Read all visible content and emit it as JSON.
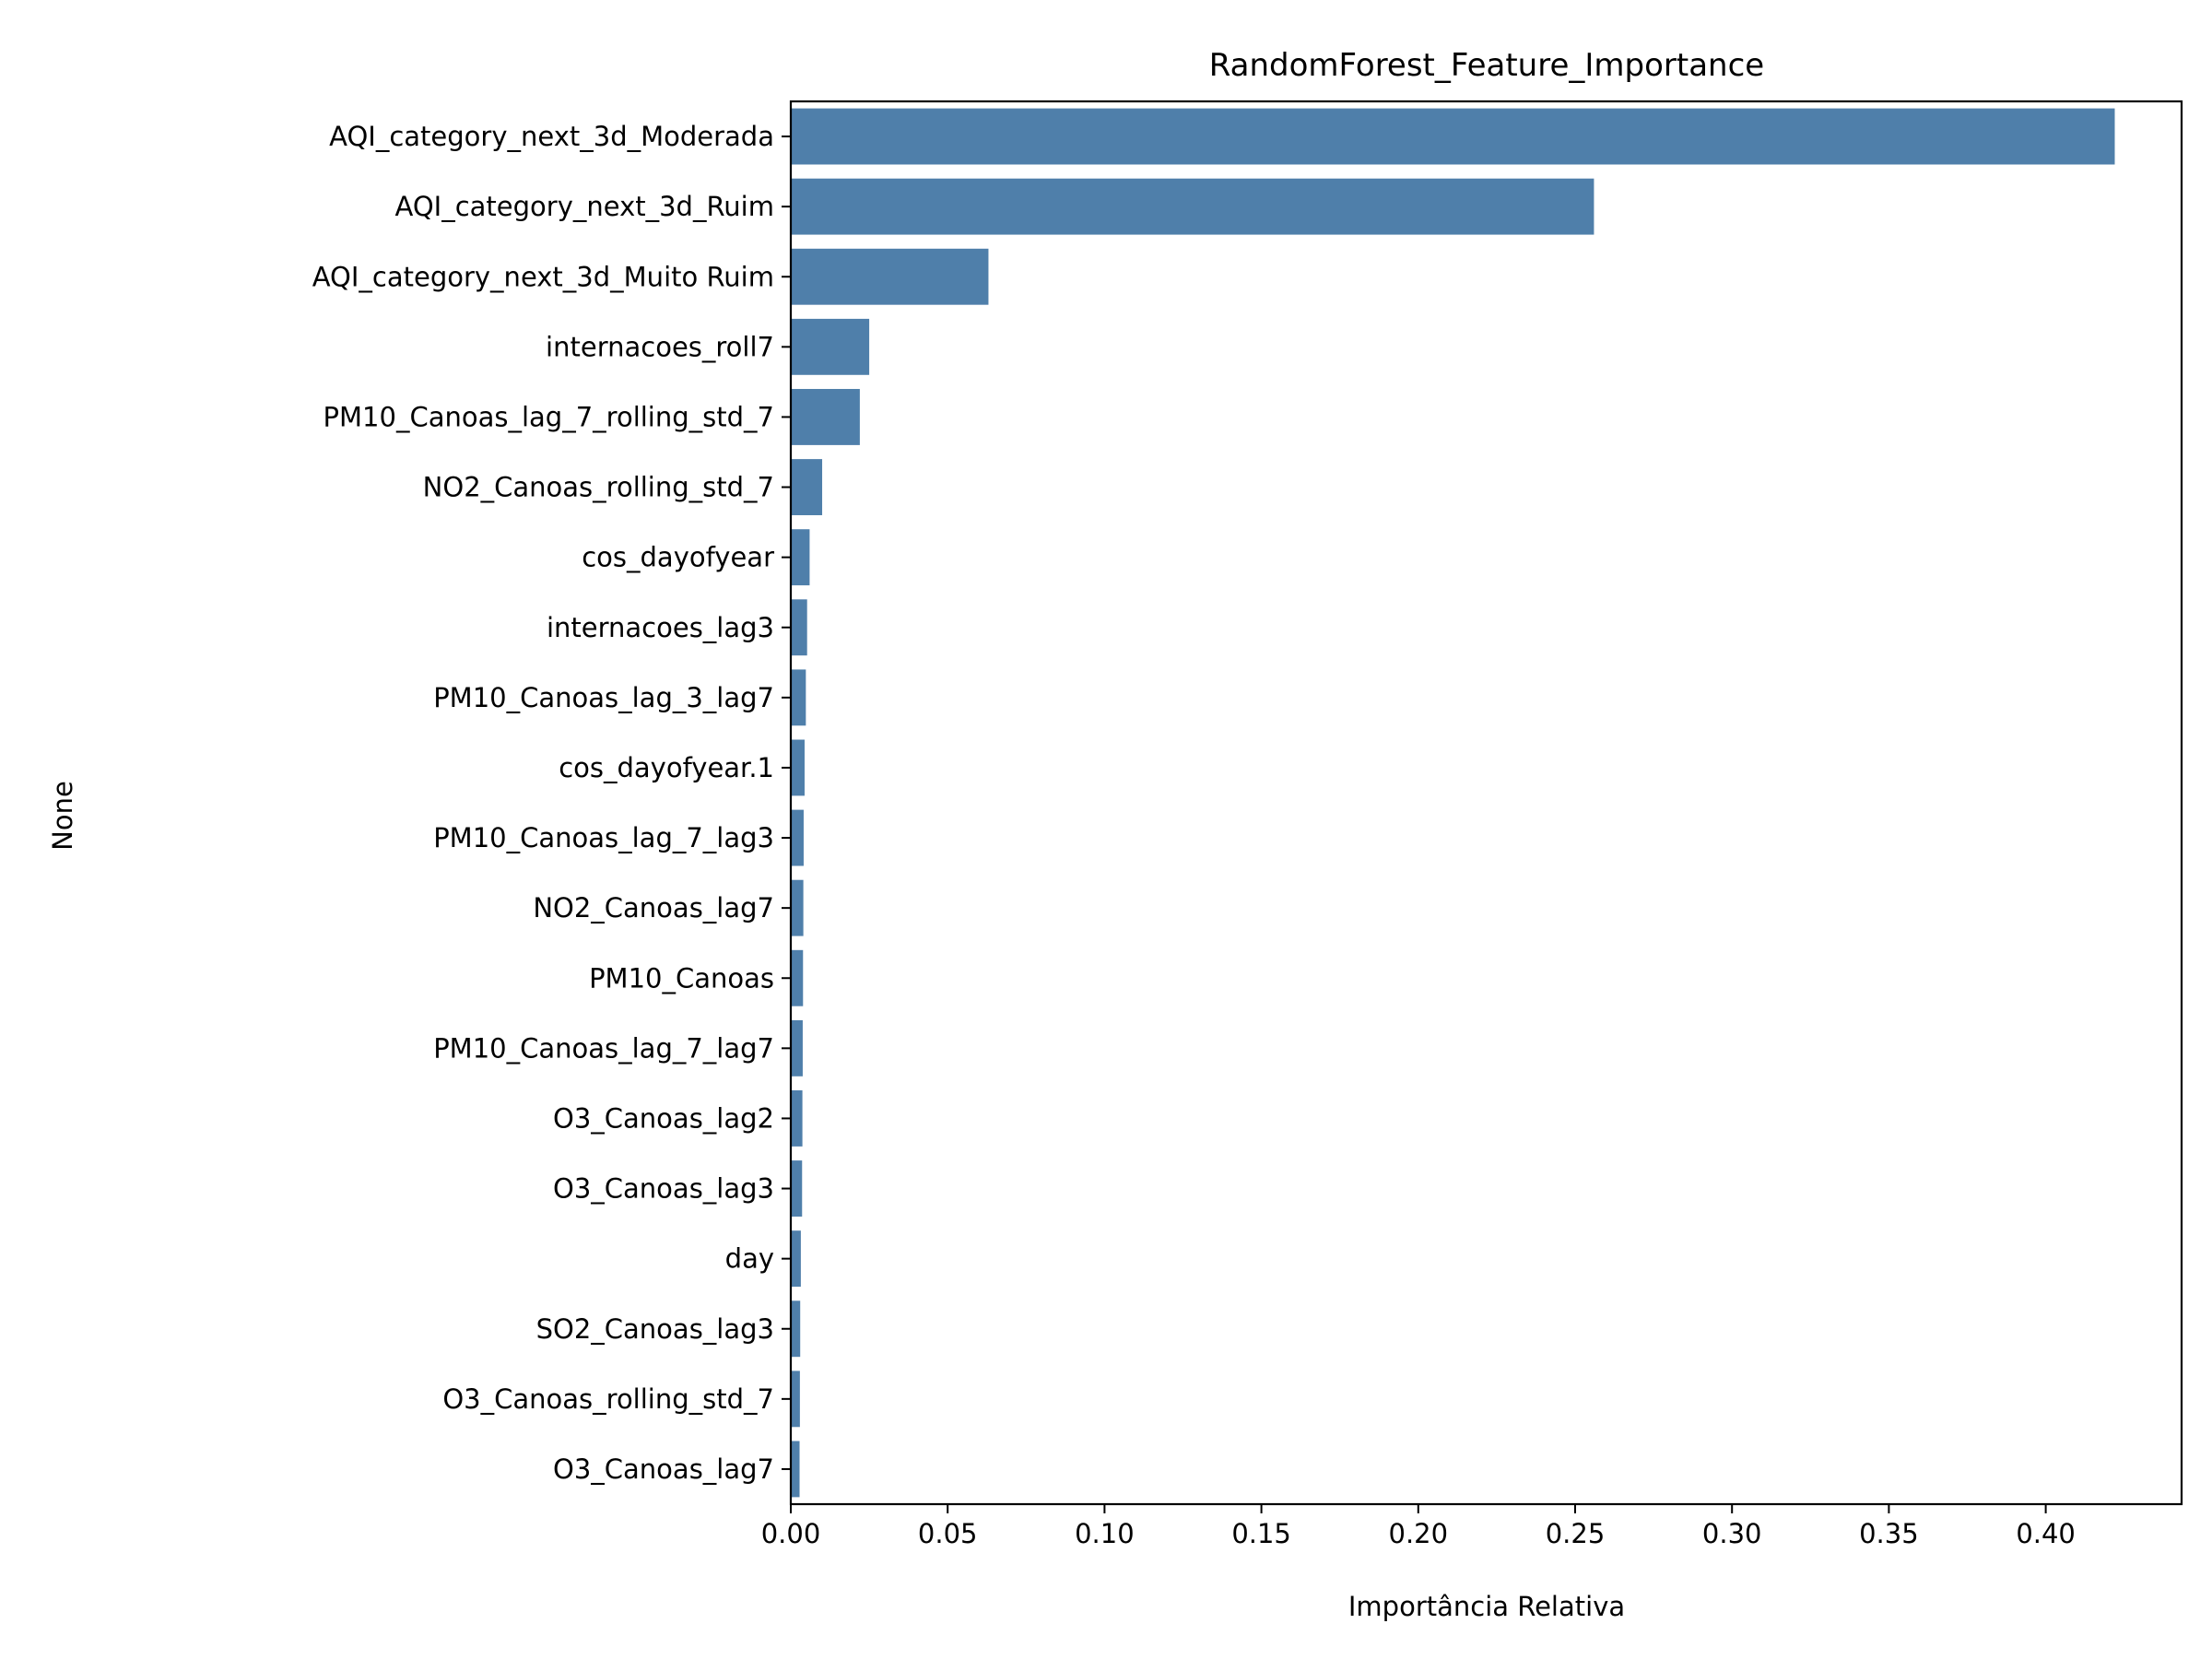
{
  "chart_data": {
    "type": "bar",
    "orientation": "horizontal",
    "title": "RandomForest_Feature_Importance",
    "xlabel": "Importância Relativa",
    "ylabel": "None",
    "xlim": [
      0,
      0.4433
    ],
    "xticks": [
      "0.00",
      "0.05",
      "0.10",
      "0.15",
      "0.20",
      "0.25",
      "0.30",
      "0.35",
      "0.40"
    ],
    "grid": false,
    "bar_color": "#4f7faa",
    "categories": [
      "AQI_category_next_3d_Moderada",
      "AQI_category_next_3d_Ruim",
      "AQI_category_next_3d_Muito Ruim",
      "internacoes_roll7",
      "PM10_Canoas_lag_7_rolling_std_7",
      "NO2_Canoas_rolling_std_7",
      "cos_dayofyear",
      "internacoes_lag3",
      "PM10_Canoas_lag_3_lag7",
      "cos_dayofyear.1",
      "PM10_Canoas_lag_7_lag3",
      "NO2_Canoas_lag7",
      "PM10_Canoas",
      "PM10_Canoas_lag_7_lag7",
      "O3_Canoas_lag2",
      "O3_Canoas_lag3",
      "day",
      "SO2_Canoas_lag3",
      "O3_Canoas_rolling_std_7",
      "O3_Canoas_lag7"
    ],
    "values": [
      0.422,
      0.256,
      0.063,
      0.025,
      0.022,
      0.01,
      0.006,
      0.0052,
      0.0048,
      0.0044,
      0.0041,
      0.004,
      0.0039,
      0.0038,
      0.0037,
      0.0036,
      0.0032,
      0.003,
      0.0029,
      0.0028
    ]
  }
}
